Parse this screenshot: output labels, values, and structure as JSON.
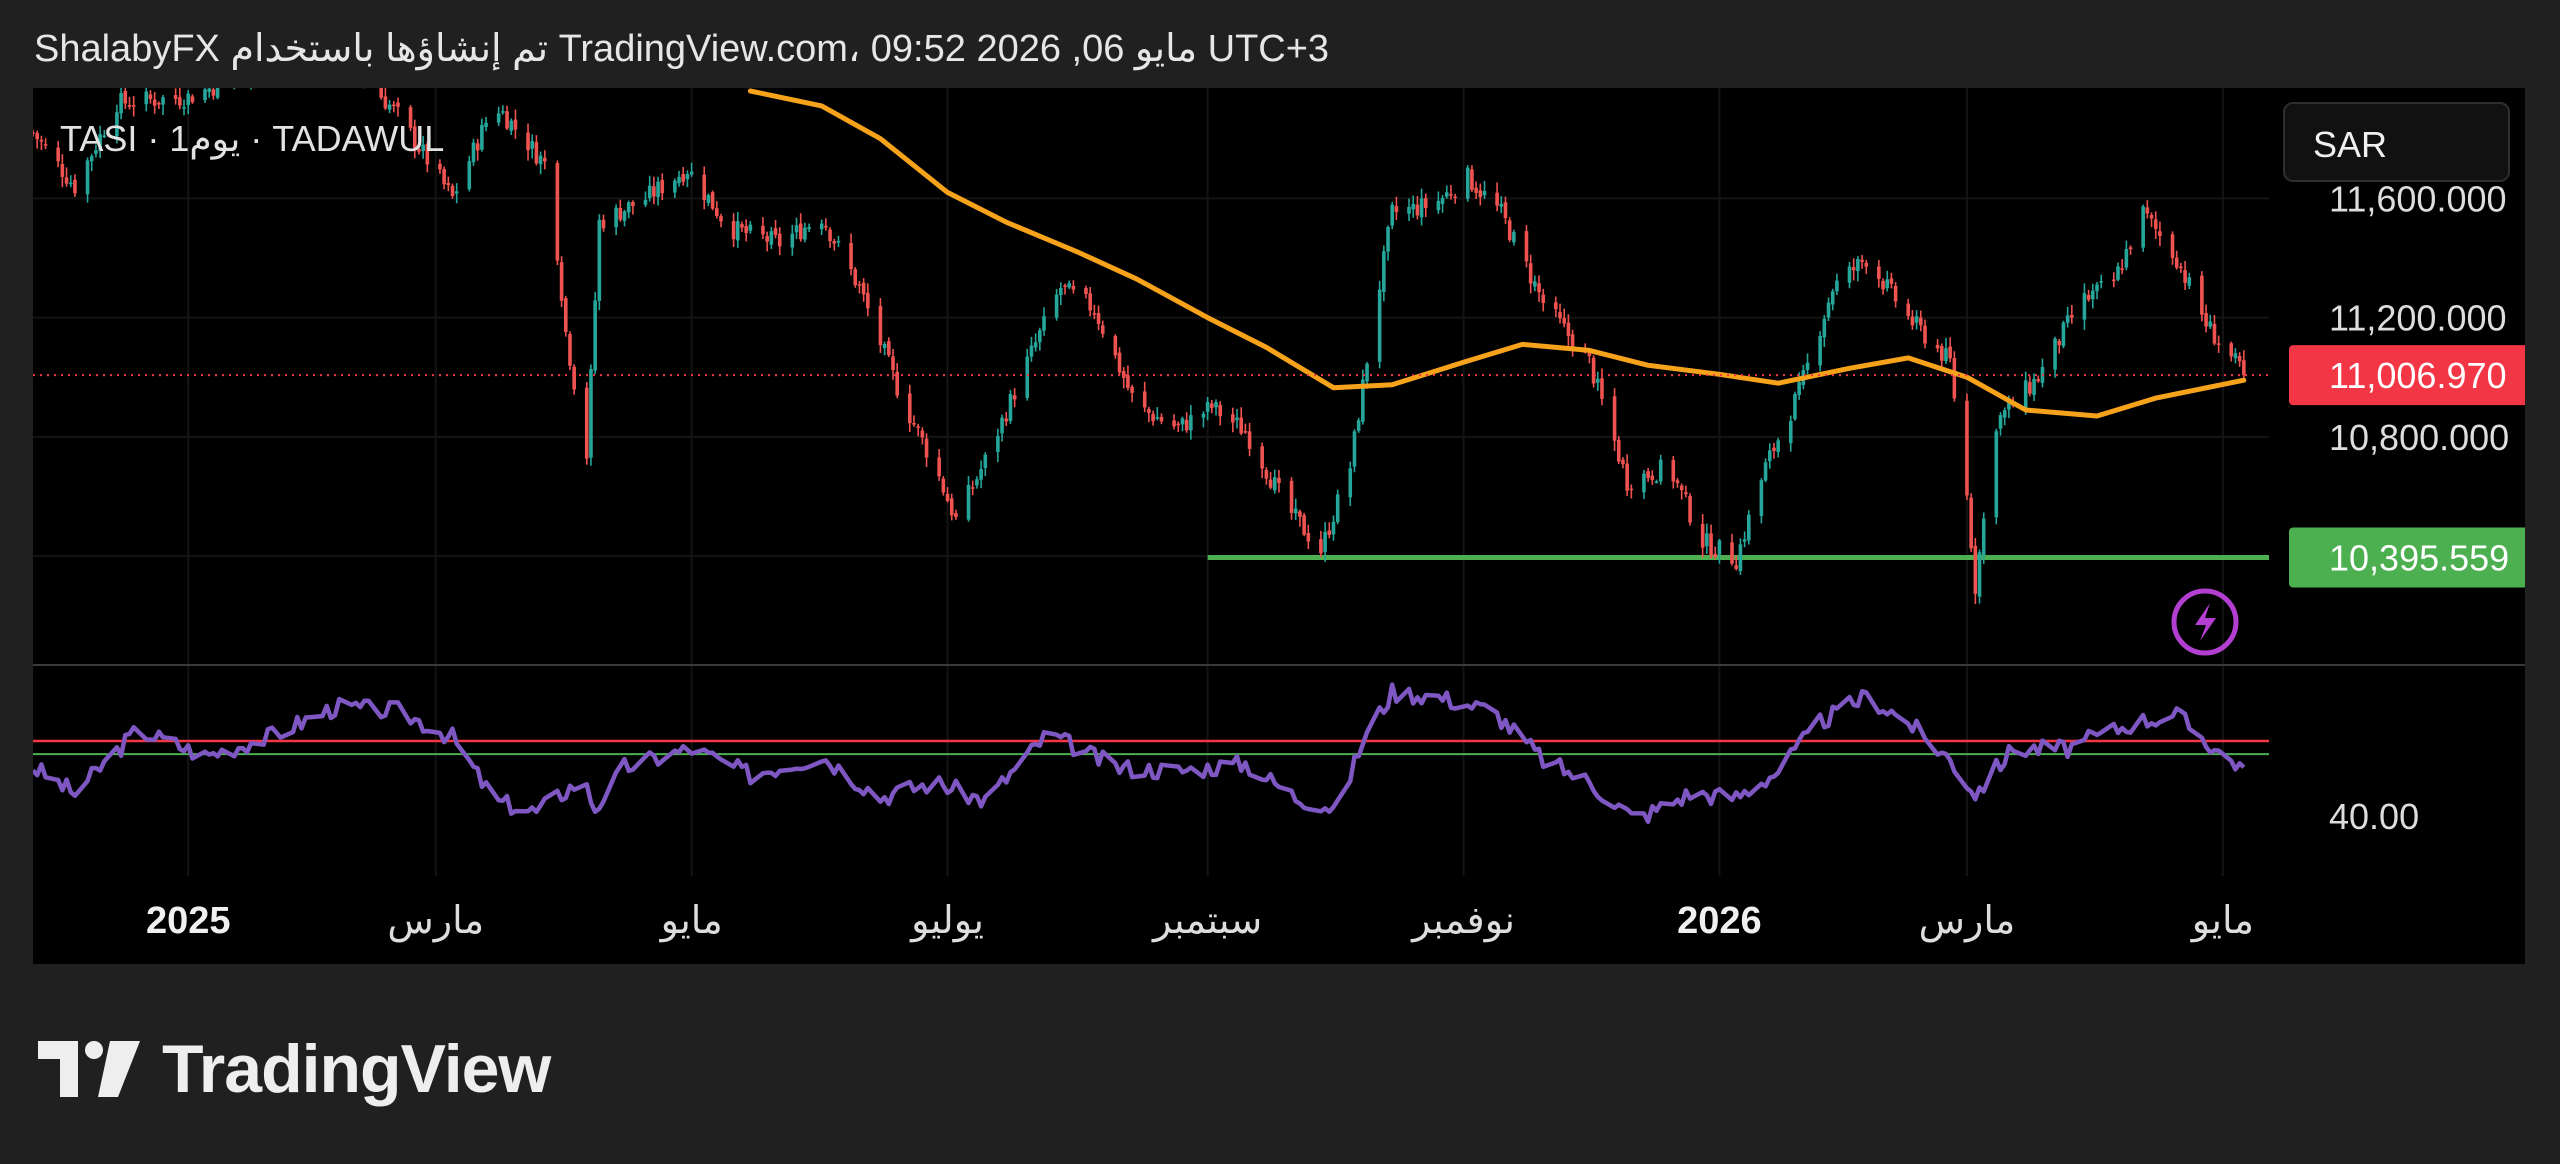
{
  "header": {
    "caption": "ShalabyFX تم إنشاؤها باستخدام TradingView.com، 09:52 2026 ,06 مايو UTC+3"
  },
  "symbol": {
    "label": "TASI · 1يوم · TADAWUL"
  },
  "currency": {
    "label": "SAR"
  },
  "brand": {
    "name": "TradingView"
  },
  "colors": {
    "background": "#202020",
    "pane": "#000000",
    "candle_up": "#26a69a",
    "candle_down": "#ef5350",
    "moving_average": "#f7a21b",
    "support_line": "#4caf50",
    "rsi_line": "#7e57c2",
    "rsi_upper_band": "#f23645",
    "rsi_lower_band": "#4caf50",
    "last_price_badge": "#f23645",
    "support_badge": "#4caf50",
    "alert_icon": "#b23fd1"
  },
  "icons": {
    "alert": "lightning-alert-icon",
    "logo": "tradingview-logo-icon"
  },
  "chart_data": [
    {
      "type": "candlestick",
      "interval": "1D",
      "y_axis_ticks": [
        {
          "value": 11600,
          "label": "11,600.000"
        },
        {
          "value": 11200,
          "label": "11,200.000"
        },
        {
          "value": 10800,
          "label": "10,800.000"
        }
      ],
      "ylim": [
        10035,
        11970
      ],
      "x_axis_ticks": [
        {
          "date": "2025-01-01",
          "label": "2025"
        },
        {
          "date": "2025-03-01",
          "label": "مارس"
        },
        {
          "date": "2025-05-01",
          "label": "مايو"
        },
        {
          "date": "2025-07-01",
          "label": "يوليو"
        },
        {
          "date": "2025-09-01",
          "label": "سبتمبر"
        },
        {
          "date": "2025-11-01",
          "label": "نوفمبر"
        },
        {
          "date": "2026-01-01",
          "label": "2026"
        },
        {
          "date": "2026-03-01",
          "label": "مارس"
        },
        {
          "date": "2026-05-01",
          "label": "مايو"
        }
      ],
      "last_price": {
        "value": 11006.97,
        "label": "11,006.970"
      },
      "support_level": {
        "value": 10395.559,
        "label": "10,395.559",
        "from": "2025-09-01"
      },
      "close_path": [
        [
          "2024-11-25",
          11820
        ],
        [
          "2024-12-05",
          11640
        ],
        [
          "2024-12-15",
          11920
        ],
        [
          "2025-01-01",
          11940
        ],
        [
          "2025-01-20",
          12050
        ],
        [
          "2025-02-05",
          12120
        ],
        [
          "2025-02-20",
          11880
        ],
        [
          "2025-03-05",
          11600
        ],
        [
          "2025-03-15",
          11920
        ],
        [
          "2025-03-28",
          11700
        ],
        [
          "2025-04-01",
          11150
        ],
        [
          "2025-04-06",
          10740
        ],
        [
          "2025-04-09",
          11520
        ],
        [
          "2025-04-20",
          11600
        ],
        [
          "2025-04-30",
          11700
        ],
        [
          "2025-05-10",
          11500
        ],
        [
          "2025-05-22",
          11450
        ],
        [
          "2025-06-01",
          11540
        ],
        [
          "2025-06-10",
          11300
        ],
        [
          "2025-06-20",
          10930
        ],
        [
          "2025-06-28",
          10700
        ],
        [
          "2025-07-03",
          10520
        ],
        [
          "2025-07-10",
          10720
        ],
        [
          "2025-07-20",
          11050
        ],
        [
          "2025-07-28",
          11300
        ],
        [
          "2025-08-05",
          11230
        ],
        [
          "2025-08-15",
          10900
        ],
        [
          "2025-08-25",
          10830
        ],
        [
          "2025-09-02",
          10900
        ],
        [
          "2025-09-10",
          10820
        ],
        [
          "2025-09-20",
          10560
        ],
        [
          "2025-09-28",
          10420
        ],
        [
          "2025-10-05",
          10700
        ],
        [
          "2025-10-10",
          11150
        ],
        [
          "2025-10-15",
          11550
        ],
        [
          "2025-10-25",
          11580
        ],
        [
          "2025-11-02",
          11670
        ],
        [
          "2025-11-10",
          11550
        ],
        [
          "2025-11-20",
          11250
        ],
        [
          "2025-12-01",
          11050
        ],
        [
          "2025-12-10",
          10650
        ],
        [
          "2025-12-20",
          10700
        ],
        [
          "2025-12-28",
          10450
        ],
        [
          "2026-01-05",
          10390
        ],
        [
          "2026-01-12",
          10700
        ],
        [
          "2026-01-20",
          10950
        ],
        [
          "2026-01-28",
          11300
        ],
        [
          "2026-02-05",
          11400
        ],
        [
          "2026-02-15",
          11200
        ],
        [
          "2026-02-25",
          11050
        ],
        [
          "2026-03-01",
          10600
        ],
        [
          "2026-03-03",
          10300
        ],
        [
          "2026-03-08",
          10850
        ],
        [
          "2026-03-18",
          11000
        ],
        [
          "2026-03-28",
          11250
        ],
        [
          "2026-04-05",
          11320
        ],
        [
          "2026-04-12",
          11550
        ],
        [
          "2026-04-20",
          11400
        ],
        [
          "2026-04-27",
          11180
        ],
        [
          "2026-05-06",
          11006.97
        ]
      ],
      "moving_average_path": [
        [
          "2025-05-15",
          11960
        ],
        [
          "2025-06-01",
          11910
        ],
        [
          "2025-06-15",
          11800
        ],
        [
          "2025-07-01",
          11620
        ],
        [
          "2025-07-15",
          11520
        ],
        [
          "2025-08-01",
          11420
        ],
        [
          "2025-08-15",
          11330
        ],
        [
          "2025-09-01",
          11200
        ],
        [
          "2025-09-15",
          11100
        ],
        [
          "2025-10-01",
          10965
        ],
        [
          "2025-10-15",
          10975
        ],
        [
          "2025-11-01",
          11050
        ],
        [
          "2025-11-15",
          11110
        ],
        [
          "2025-12-01",
          11090
        ],
        [
          "2025-12-15",
          11040
        ],
        [
          "2026-01-01",
          11010
        ],
        [
          "2026-01-15",
          10980
        ],
        [
          "2026-02-01",
          11030
        ],
        [
          "2026-02-15",
          11065
        ],
        [
          "2026-03-01",
          11000
        ],
        [
          "2026-03-15",
          10890
        ],
        [
          "2026-04-01",
          10870
        ],
        [
          "2026-04-15",
          10930
        ],
        [
          "2026-05-06",
          10990
        ]
      ]
    },
    {
      "type": "line",
      "indicator": "RSI",
      "y_axis_ticks": [
        {
          "value": 40,
          "label": "40.00"
        }
      ],
      "upper_band": 60,
      "lower_band": 56.5,
      "ylim": [
        24,
        80
      ],
      "path": [
        [
          "2024-11-25",
          53
        ],
        [
          "2024-12-05",
          46
        ],
        [
          "2024-12-20",
          63
        ],
        [
          "2025-01-05",
          56
        ],
        [
          "2025-01-20",
          61
        ],
        [
          "2025-02-05",
          69
        ],
        [
          "2025-02-20",
          68
        ],
        [
          "2025-03-05",
          61
        ],
        [
          "2025-03-15",
          44
        ],
        [
          "2025-03-25",
          41
        ],
        [
          "2025-04-05",
          50
        ],
        [
          "2025-04-08",
          42
        ],
        [
          "2025-04-15",
          53
        ],
        [
          "2025-05-01",
          58
        ],
        [
          "2025-05-15",
          51
        ],
        [
          "2025-06-01",
          56
        ],
        [
          "2025-06-15",
          45
        ],
        [
          "2025-06-28",
          49
        ],
        [
          "2025-07-10",
          44
        ],
        [
          "2025-07-25",
          62
        ],
        [
          "2025-08-10",
          53
        ],
        [
          "2025-08-25",
          52
        ],
        [
          "2025-09-10",
          54
        ],
        [
          "2025-09-22",
          45
        ],
        [
          "2025-10-02",
          42
        ],
        [
          "2025-10-08",
          60
        ],
        [
          "2025-10-15",
          73
        ],
        [
          "2025-10-25",
          72
        ],
        [
          "2025-11-08",
          68
        ],
        [
          "2025-11-20",
          55
        ],
        [
          "2025-12-01",
          49
        ],
        [
          "2025-12-12",
          39
        ],
        [
          "2025-12-25",
          46
        ],
        [
          "2026-01-05",
          45
        ],
        [
          "2026-01-15",
          52
        ],
        [
          "2026-01-25",
          65
        ],
        [
          "2026-02-05",
          72
        ],
        [
          "2026-02-15",
          65
        ],
        [
          "2026-02-25",
          55
        ],
        [
          "2026-03-03",
          46
        ],
        [
          "2026-03-12",
          58
        ],
        [
          "2026-03-25",
          58
        ],
        [
          "2026-04-10",
          65
        ],
        [
          "2026-04-20",
          67
        ],
        [
          "2026-04-30",
          57
        ],
        [
          "2026-05-06",
          53
        ]
      ]
    }
  ]
}
